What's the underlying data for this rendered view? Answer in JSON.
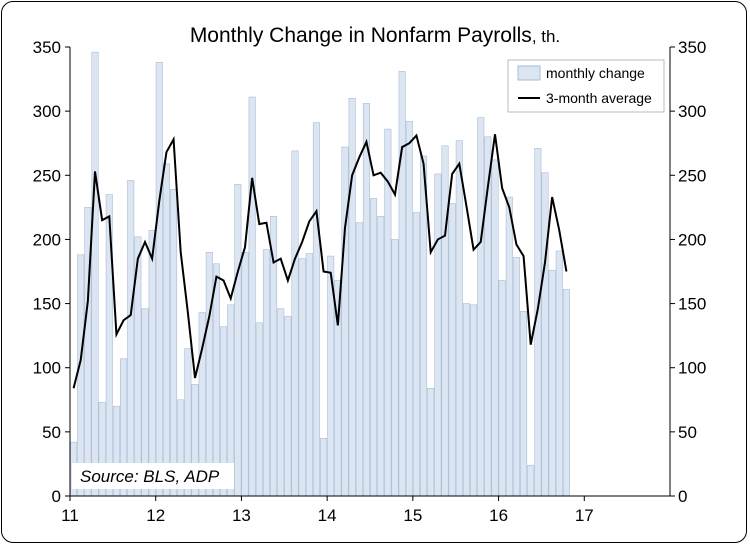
{
  "chart_data": {
    "type": "bar",
    "title_main": "Monthly Change in Nonfarm Payrolls",
    "title_unit": ", th.",
    "xlabel": "",
    "ylabel": "",
    "ylim": [
      0,
      350
    ],
    "yticks": [
      0,
      50,
      100,
      150,
      200,
      250,
      300,
      350
    ],
    "xlim": [
      11,
      18
    ],
    "xticks": [
      11,
      12,
      13,
      14,
      15,
      16,
      17
    ],
    "grid": false,
    "legend_position": "top-right",
    "source": "Source: BLS, ADP",
    "colors": {
      "bar_fill": "#dce6f2",
      "bar_stroke": "#a9bcd6",
      "line": "#000000",
      "axis": "#000000"
    },
    "series": [
      {
        "name": "monthly change",
        "type": "bar",
        "values": [
          42,
          188,
          225,
          346,
          73,
          235,
          70,
          107,
          246,
          202,
          146,
          207,
          338,
          259,
          239,
          75,
          115,
          87,
          143,
          190,
          181,
          132,
          149,
          243,
          190,
          311,
          135,
          192,
          218,
          146,
          140,
          269,
          185,
          189,
          291,
          45,
          187,
          168,
          272,
          310,
          213,
          306,
          232,
          218,
          286,
          200,
          331,
          292,
          221,
          265,
          84,
          251,
          273,
          228,
          277,
          150,
          149,
          295,
          280,
          262,
          168,
          233,
          186,
          144,
          24,
          271,
          252,
          176,
          191,
          161
        ]
      },
      {
        "name": "3-month average",
        "type": "line",
        "values": [
          84,
          106,
          152,
          253,
          215,
          218,
          126,
          137,
          141,
          185,
          198,
          185,
          230,
          268,
          278,
          190,
          143,
          92,
          115,
          140,
          171,
          168,
          154,
          175,
          194,
          248,
          212,
          213,
          182,
          185,
          168,
          185,
          198,
          214,
          222,
          175,
          174,
          133,
          209,
          250,
          264,
          276,
          250,
          252,
          245,
          235,
          272,
          275,
          281,
          259,
          190,
          200,
          203,
          251,
          259,
          226,
          192,
          198,
          241,
          282,
          240,
          225,
          196,
          187,
          118,
          146,
          182,
          233,
          207,
          175
        ]
      }
    ]
  }
}
